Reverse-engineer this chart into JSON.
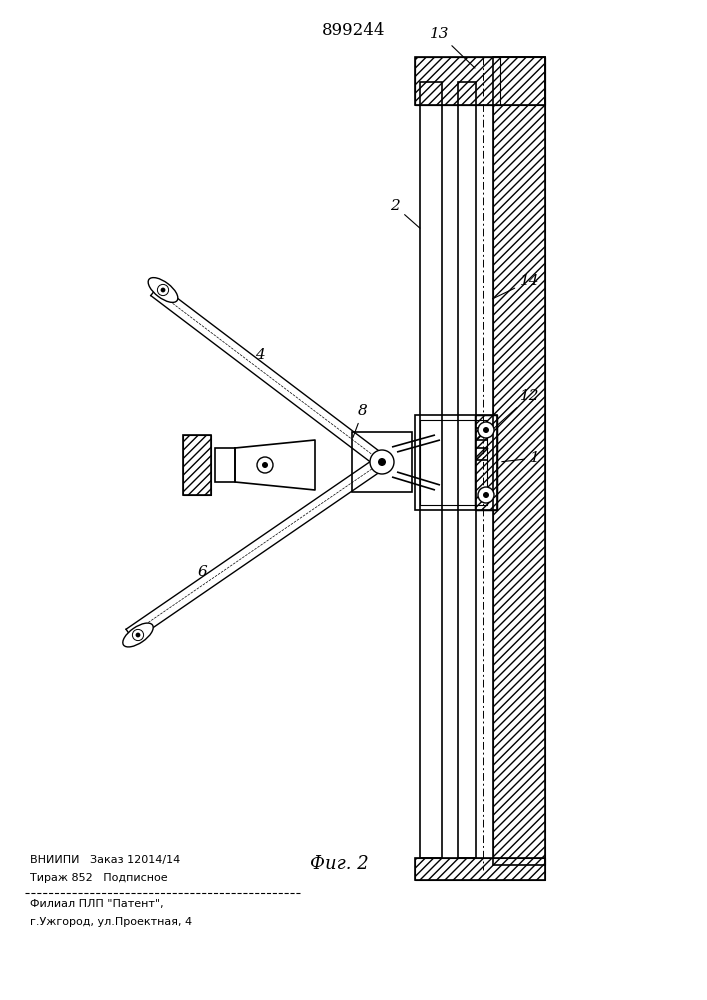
{
  "title": "899244",
  "fig_label": "Фиг. 2",
  "bottom_text_line1": "ВНИИПИ   Заказ 12014/14",
  "bottom_text_line2": "Тираж 852   Подписное",
  "bottom_text_line3": "Филиал ПЛП \"Патент\",",
  "bottom_text_line4": "г.Ужгород, ул.Проектная, 4",
  "bg_color": "#ffffff"
}
